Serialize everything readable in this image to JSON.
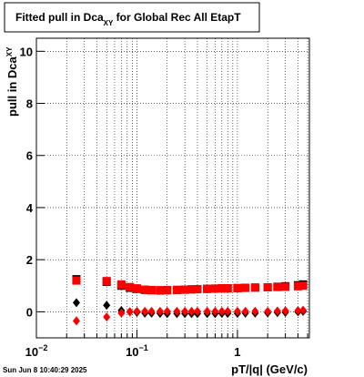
{
  "chart_data": {
    "type": "scatter",
    "title": "Fitted pull in Dca",
    "title_subscript": "XY",
    "title_rest": " for Global Rec All EtapT",
    "ylabel": "pull in Dca",
    "ylabel_subscript": "XY",
    "xlabel": "pT/|q| (GeV/c)",
    "timestamp": "Sun Jun  8 10:40:29 2025",
    "log_x": true,
    "grid": true,
    "xlim": [
      0.01,
      5.2
    ],
    "ylim": [
      -1,
      10.5
    ],
    "xticks": [
      {
        "value": 0.01,
        "label": "10",
        "exponent": "−2"
      },
      {
        "value": 0.1,
        "label": "10",
        "exponent": "−1"
      },
      1
    ],
    "xgrid": [
      0.02,
      0.03,
      0.04,
      0.05,
      0.06,
      0.07,
      0.08,
      0.09,
      0.2,
      0.3,
      0.4,
      0.5,
      0.6,
      0.7,
      0.8,
      0.9,
      2,
      3,
      4,
      5
    ],
    "yticks": [
      0,
      2,
      4,
      6,
      8,
      10
    ],
    "x": [
      0.025,
      0.05,
      0.07,
      0.085,
      0.1,
      0.12,
      0.14,
      0.17,
      0.2,
      0.25,
      0.3,
      0.35,
      0.4,
      0.5,
      0.6,
      0.7,
      0.8,
      1.0,
      1.2,
      1.5,
      2.0,
      2.5,
      3.0,
      4.0,
      4.5
    ],
    "series": [
      {
        "color": "#000000",
        "marker": "square",
        "values": [
          1.25,
          1.15,
          1.0,
          0.92,
          0.88,
          0.84,
          0.83,
          0.82,
          0.83,
          0.84,
          0.85,
          0.86,
          0.87,
          0.88,
          0.89,
          0.9,
          0.9,
          0.91,
          0.92,
          0.93,
          0.94,
          0.96,
          0.98,
          1.02,
          1.05
        ]
      },
      {
        "color": "#ff0000",
        "marker": "square",
        "values": [
          1.2,
          1.18,
          1.05,
          0.95,
          0.9,
          0.85,
          0.83,
          0.83,
          0.83,
          0.84,
          0.85,
          0.86,
          0.87,
          0.88,
          0.89,
          0.9,
          0.9,
          0.91,
          0.92,
          0.93,
          0.94,
          0.95,
          0.96,
          0.98,
          1.0
        ]
      },
      {
        "color": "#000000",
        "marker": "diamond",
        "values": [
          0.35,
          0.25,
          0.05,
          0.0,
          -0.02,
          -0.05,
          -0.05,
          -0.06,
          -0.07,
          -0.07,
          -0.07,
          -0.07,
          -0.07,
          -0.07,
          -0.07,
          -0.06,
          -0.06,
          -0.06,
          -0.05,
          -0.05,
          -0.04,
          -0.03,
          -0.02,
          0.0,
          0.02
        ]
      },
      {
        "color": "#ff0000",
        "marker": "diamond",
        "values": [
          -0.35,
          -0.2,
          -0.05,
          0.0,
          0.02,
          0.02,
          0.02,
          0.02,
          0.02,
          0.02,
          0.02,
          0.02,
          0.02,
          0.02,
          0.02,
          0.02,
          0.02,
          0.02,
          0.02,
          0.02,
          0.02,
          0.03,
          0.04,
          0.05,
          0.06
        ]
      }
    ]
  }
}
